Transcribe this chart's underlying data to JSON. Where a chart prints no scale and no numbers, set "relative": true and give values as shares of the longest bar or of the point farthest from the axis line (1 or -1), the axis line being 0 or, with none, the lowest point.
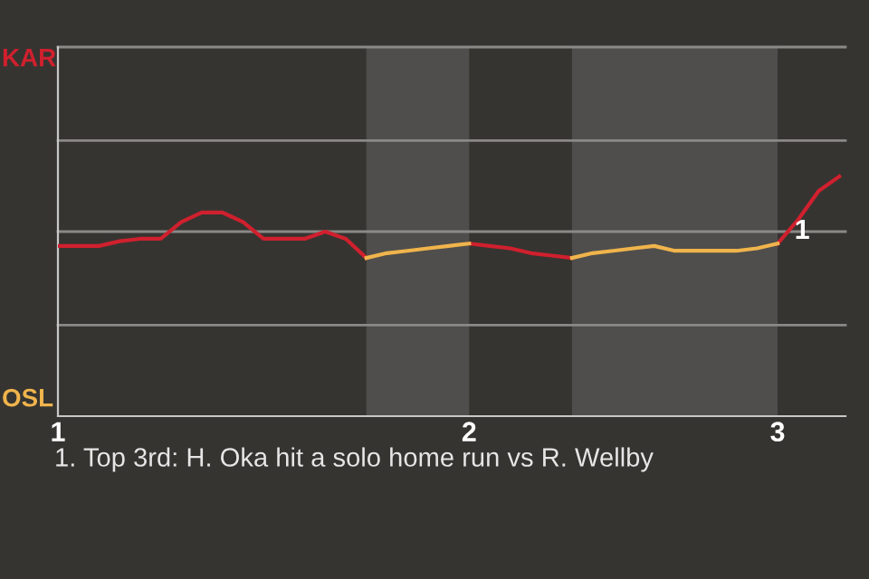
{
  "chart_data": {
    "type": "line",
    "relative": true,
    "categories": [
      "1",
      null,
      null,
      null,
      null,
      null,
      null,
      null,
      null,
      null,
      null,
      null,
      null,
      null,
      null,
      null,
      null,
      null,
      null,
      null,
      "2",
      null,
      null,
      null,
      null,
      null,
      null,
      null,
      null,
      null,
      null,
      null,
      null,
      null,
      null,
      "3",
      null,
      null,
      null
    ],
    "series": [
      {
        "color": "#d0202e",
        "values": [
          0.71,
          0.71,
          0.71,
          0.73,
          0.74,
          0.74,
          0.81,
          0.85,
          0.85,
          0.81,
          0.74,
          0.74,
          0.74,
          0.77,
          0.74,
          0.66,
          null,
          null,
          null,
          null,
          0.72,
          0.71,
          0.7,
          0.68,
          0.67,
          0.66,
          null,
          null,
          null,
          null,
          null,
          null,
          null,
          null,
          null,
          0.72,
          0.82,
          0.94,
          1
        ]
      },
      {
        "color": "#f0b44c",
        "values": [
          null,
          null,
          null,
          null,
          null,
          null,
          null,
          null,
          null,
          null,
          null,
          null,
          null,
          null,
          null,
          0.66,
          0.68,
          0.69,
          0.7,
          0.71,
          0.72,
          null,
          null,
          null,
          null,
          0.66,
          0.68,
          0.69,
          0.7,
          0.71,
          0.69,
          0.69,
          0.69,
          0.69,
          0.7,
          0.72,
          null,
          null,
          null
        ]
      }
    ],
    "ref_lines": [
      {
        "axis": "y",
        "value": 0.38,
        "color": "#8a8987"
      },
      {
        "axis": "y",
        "value": 0.77,
        "color": "#8a8987"
      },
      {
        "axis": "y",
        "value": 1.15,
        "color": "#8a8987"
      },
      {
        "axis": "y",
        "value": 1.54,
        "color": "#8a8987"
      }
    ],
    "legend": false,
    "marker": "none",
    "line_style": "solid",
    "annotations": [
      "KAR",
      "OSL",
      "1",
      "1. Top 3rd: H. Oka hit a solo home run vs R. Wellby"
    ]
  }
}
